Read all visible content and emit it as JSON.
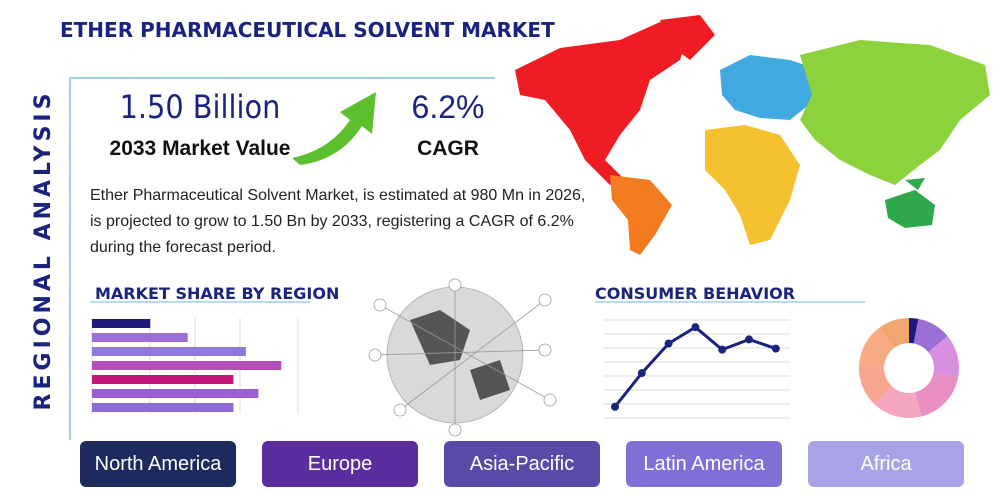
{
  "header": {
    "title": "ETHER PHARMACEUTICAL SOLVENT MARKET",
    "side_label": "REGIONAL ANALYSIS"
  },
  "stats": {
    "market_value": "1.50 Billion",
    "market_value_label": "2033 Market Value",
    "cagr": "6.2%",
    "cagr_label": "CAGR"
  },
  "description": "Ether Pharmaceutical Solvent Market, is estimated at 980 Mn in 2026, is projected to grow to 1.50 Bn by 2033, registering a CAGR of 6.2% during the forecast period.",
  "regions": [
    "North America",
    "Europe",
    "Asia-Pacific",
    "Latin America",
    "Africa"
  ],
  "chart_data": [
    {
      "type": "hbar",
      "title": "MARKET SHARE BY REGION",
      "categories": [
        null,
        null,
        null,
        null,
        null,
        null,
        null
      ],
      "values": [
        28,
        46,
        74,
        91,
        68,
        80,
        68
      ],
      "colors": [
        "#1f1a78",
        "#9b6fd6",
        "#8f78dc",
        "#b24fb8",
        "#c4177c",
        "#9a5fd2",
        "#8e6bd6"
      ],
      "xlim": [
        0,
        100
      ]
    },
    {
      "type": "line",
      "title": "CONSUMER BEHAVIOR",
      "categories": [
        null,
        null,
        null,
        null,
        null,
        null,
        null
      ],
      "values": [
        13,
        46,
        75,
        91,
        69,
        79,
        70
      ],
      "color": "#1a237e",
      "ylim": [
        0,
        100
      ]
    },
    {
      "type": "pie",
      "values": [
        3,
        11,
        14,
        18,
        16,
        14,
        14,
        10
      ],
      "colors": [
        "#1f1a78",
        "#9b6fd6",
        "#d78fe0",
        "#e98fc3",
        "#f4a6c0",
        "#f8a590",
        "#f6ab86",
        "#f2a66e"
      ]
    }
  ]
}
